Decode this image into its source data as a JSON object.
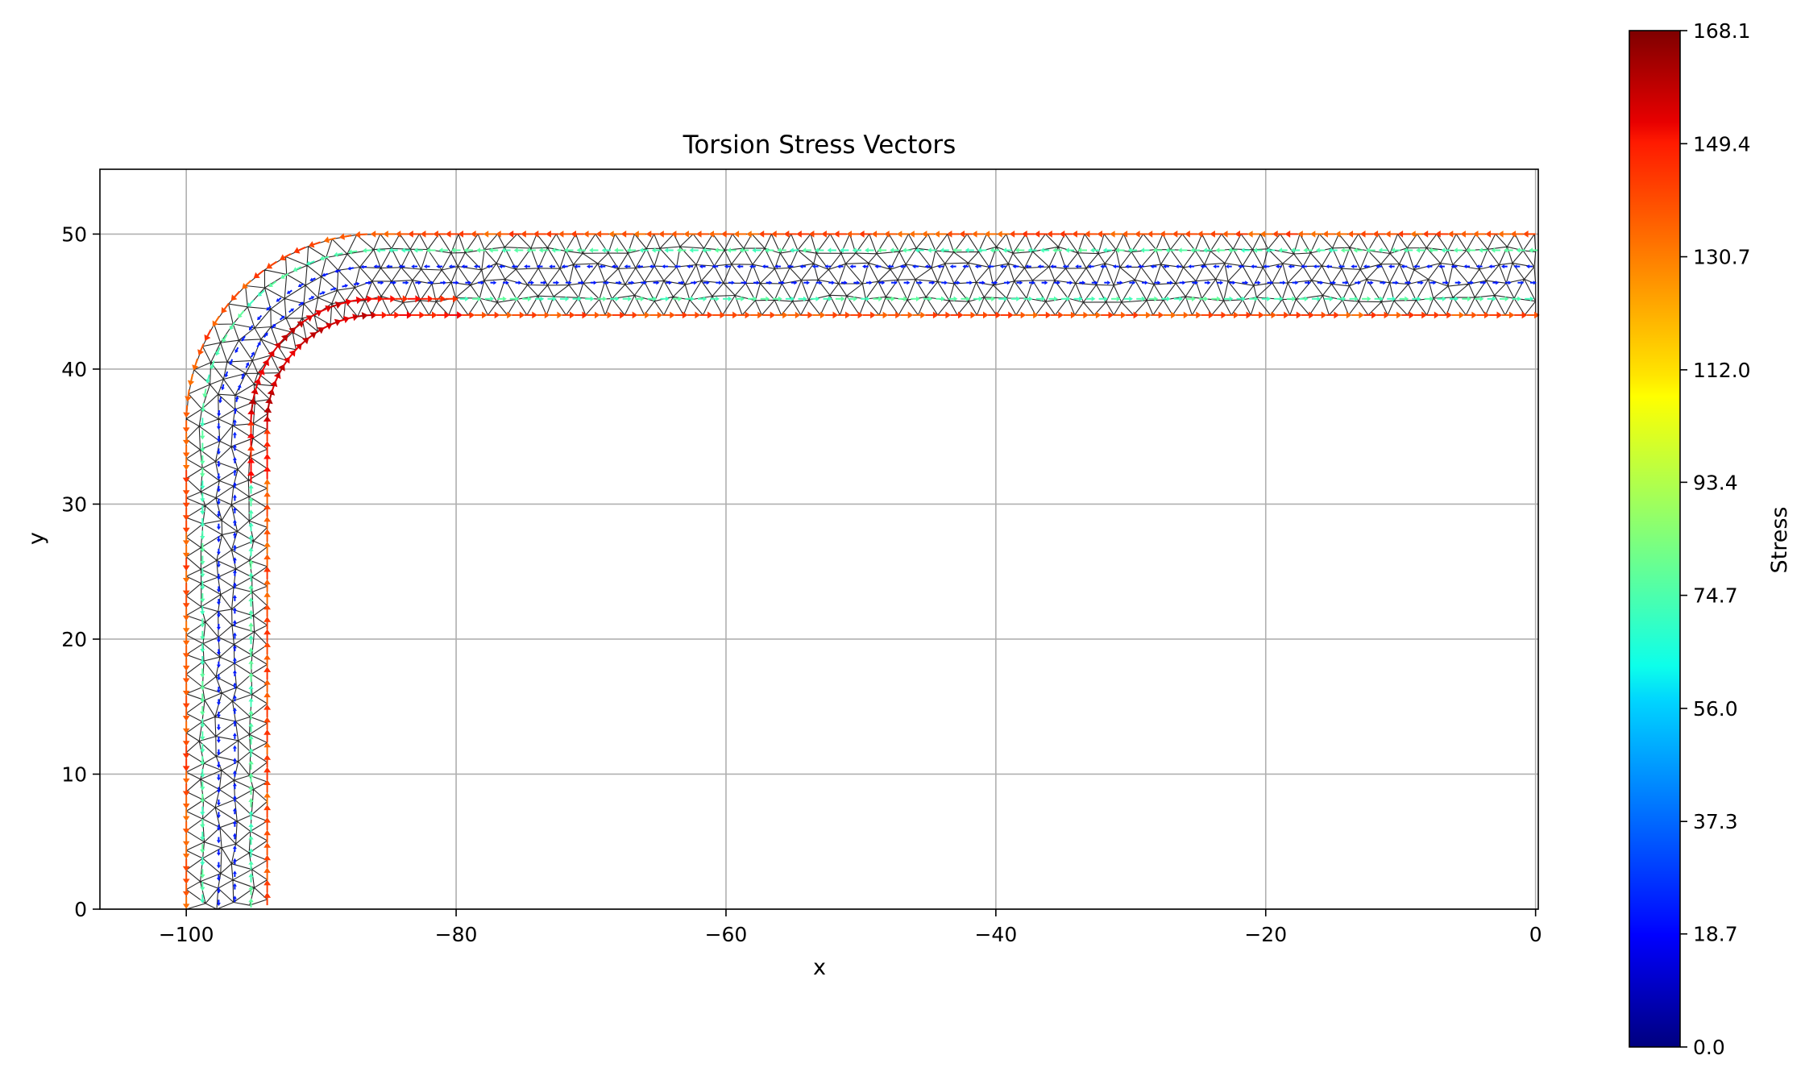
{
  "chart_data": {
    "type": "quiver",
    "title": "Torsion Stress Vectors",
    "xlabel": "x",
    "ylabel": "y",
    "xlim": [
      -106.4,
      0.2
    ],
    "ylim": [
      0,
      54.8
    ],
    "xticks": [
      -100,
      -80,
      -60,
      -40,
      -20,
      0
    ],
    "xtick_labels": [
      "−100",
      "−80",
      "−60",
      "−40",
      "−20",
      "0"
    ],
    "yticks": [
      0,
      10,
      20,
      30,
      40,
      50
    ],
    "ytick_labels": [
      "0",
      "10",
      "20",
      "30",
      "40",
      "50"
    ],
    "grid": true,
    "geometry": {
      "description_free": true,
      "vertical_leg_x": [
        -100,
        -94
      ],
      "vertical_leg_y": [
        0,
        36
      ],
      "bend_center": [
        -86,
        36
      ],
      "inner_radius": 8,
      "outer_radius": 14,
      "horizontal_leg_x": [
        -86,
        0
      ],
      "horizontal_leg_y": [
        44,
        50
      ]
    },
    "stress_range": [
      0.0,
      168.1
    ],
    "colorbar": {
      "label": "Stress",
      "colormap": "jet",
      "ticks": [
        0.0,
        18.7,
        37.3,
        56.0,
        74.7,
        93.4,
        112.0,
        130.7,
        149.4,
        168.1
      ],
      "tick_labels": [
        "0.0",
        "18.7",
        "37.3",
        "56.0",
        "74.7",
        "93.4",
        "112.0",
        "130.7",
        "149.4",
        "168.1"
      ]
    }
  }
}
